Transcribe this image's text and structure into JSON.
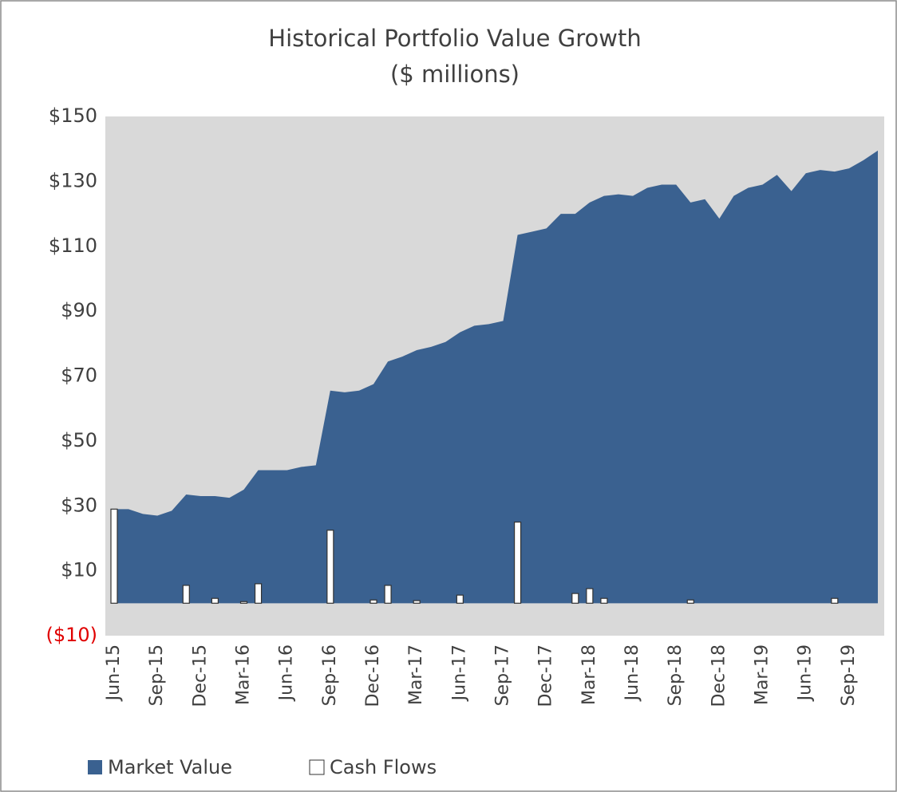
{
  "chart_data": {
    "type": "area-bar",
    "title": "Historical Portfolio Value Growth",
    "subtitle": "($ millions)",
    "categories": [
      "Jun-15",
      null,
      null,
      "Sep-15",
      null,
      null,
      "Dec-15",
      null,
      null,
      "Mar-16",
      null,
      null,
      "Jun-16",
      null,
      null,
      "Sep-16",
      null,
      null,
      "Dec-16",
      null,
      null,
      "Mar-17",
      null,
      null,
      "Jun-17",
      null,
      null,
      "Sep-17",
      null,
      null,
      "Dec-17",
      null,
      null,
      "Mar-18",
      null,
      null,
      "Jun-18",
      null,
      null,
      "Sep-18",
      null,
      null,
      "Dec-18",
      null,
      null,
      "Mar-19",
      null,
      null,
      "Jun-19",
      null,
      null,
      "Sep-19",
      null,
      null
    ],
    "series": [
      {
        "name": "Market Value",
        "kind": "area",
        "color": "#3a6190",
        "values": [
          29,
          29,
          27.5,
          27,
          28.5,
          33.5,
          33,
          33,
          32.5,
          35,
          41,
          41,
          41,
          42,
          42.5,
          65.5,
          65,
          65.5,
          67.5,
          74.5,
          76,
          78,
          79,
          80.5,
          83.5,
          85.5,
          86,
          87,
          113.5,
          114.5,
          115.5,
          120,
          120,
          123.5,
          125.5,
          126,
          125.5,
          128,
          129,
          129,
          123.5,
          124.5,
          118.5,
          125.5,
          128,
          129,
          132,
          127,
          132.5,
          133.5,
          133,
          134,
          136.5,
          139.5
        ]
      },
      {
        "name": "Cash Flows",
        "kind": "bar",
        "color": "#ffffff",
        "values": [
          29,
          0,
          0,
          0,
          0,
          5.5,
          0,
          1.5,
          0,
          0.5,
          6,
          0,
          0,
          0,
          0,
          22.5,
          0,
          0,
          1,
          5.5,
          0,
          0.8,
          0,
          0,
          2.5,
          0,
          0,
          0,
          25,
          0,
          0,
          0,
          3,
          4.5,
          1.5,
          0,
          0,
          0,
          0,
          0,
          1,
          0,
          0,
          0,
          0,
          0,
          0,
          0,
          0,
          0,
          1.5,
          0,
          0,
          0
        ]
      }
    ],
    "ylim": [
      -10,
      150
    ],
    "yticks": [
      {
        "value": -10,
        "label": "($10)"
      },
      {
        "value": 10,
        "label": "$10"
      },
      {
        "value": 30,
        "label": "$30"
      },
      {
        "value": 50,
        "label": "$50"
      },
      {
        "value": 70,
        "label": "$70"
      },
      {
        "value": 90,
        "label": "$90"
      },
      {
        "value": 110,
        "label": "$110"
      },
      {
        "value": 130,
        "label": "$130"
      },
      {
        "value": 150,
        "label": "$150"
      }
    ],
    "legend": "bottom-left"
  }
}
